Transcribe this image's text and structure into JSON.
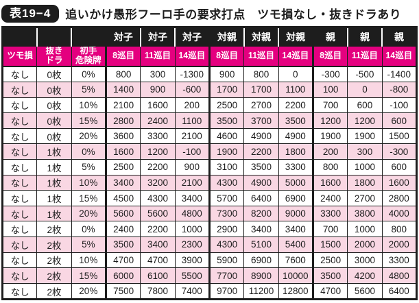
{
  "title": {
    "badge": "表19−4",
    "text": "追いかけ愚形フーロ手の要求打点　ツモ損なし・抜きドラあり"
  },
  "colors": {
    "accent_magenta": "#e4007f",
    "row_pink": "#f9d7e3",
    "header_black": "#1d1d1d"
  },
  "table": {
    "col_groups": [
      "",
      "",
      "",
      "対子",
      "対子",
      "対子",
      "対親",
      "対親",
      "対親",
      "親",
      "親",
      "親"
    ],
    "sub_headers": [
      "ツモ損",
      "抜き\nドラ",
      "初手\n危険牌",
      "8巡目",
      "11巡目",
      "14巡目",
      "8巡目",
      "11巡目",
      "14巡目",
      "8巡目",
      "11巡目",
      "14巡目"
    ],
    "rows": [
      [
        "なし",
        "0枚",
        "0%",
        "800",
        "300",
        "-1300",
        "900",
        "800",
        "0",
        "-300",
        "-500",
        "-1400"
      ],
      [
        "なし",
        "0枚",
        "5%",
        "1400",
        "900",
        "-600",
        "1700",
        "1700",
        "1100",
        "100",
        "0",
        "-800"
      ],
      [
        "なし",
        "0枚",
        "10%",
        "2100",
        "1600",
        "200",
        "2500",
        "2700",
        "2200",
        "700",
        "600",
        "-100"
      ],
      [
        "なし",
        "0枚",
        "15%",
        "2800",
        "2400",
        "1100",
        "3500",
        "3700",
        "3500",
        "1200",
        "1200",
        "600"
      ],
      [
        "なし",
        "0枚",
        "20%",
        "3600",
        "3300",
        "2100",
        "4600",
        "4900",
        "4900",
        "1900",
        "1900",
        "1500"
      ],
      [
        "なし",
        "1枚",
        "0%",
        "1600",
        "1200",
        "-100",
        "1900",
        "2200",
        "1800",
        "200",
        "300",
        "-300"
      ],
      [
        "なし",
        "1枚",
        "5%",
        "2500",
        "2200",
        "900",
        "3100",
        "3500",
        "3300",
        "800",
        "1000",
        "600"
      ],
      [
        "なし",
        "1枚",
        "10%",
        "3400",
        "3200",
        "2100",
        "4300",
        "4900",
        "5000",
        "1600",
        "1800",
        "1600"
      ],
      [
        "なし",
        "1枚",
        "15%",
        "4500",
        "4300",
        "3400",
        "5700",
        "6400",
        "6900",
        "2400",
        "2700",
        "2800"
      ],
      [
        "なし",
        "1枚",
        "20%",
        "5600",
        "5600",
        "4800",
        "7300",
        "8200",
        "9000",
        "3300",
        "3800",
        "4000"
      ],
      [
        "なし",
        "2枚",
        "0%",
        "2400",
        "2200",
        "1000",
        "2900",
        "3400",
        "3400",
        "700",
        "1000",
        "800"
      ],
      [
        "なし",
        "2枚",
        "5%",
        "3500",
        "3400",
        "2300",
        "4300",
        "5100",
        "5400",
        "1500",
        "2000",
        "2000"
      ],
      [
        "なし",
        "2枚",
        "10%",
        "4700",
        "4700",
        "3900",
        "5900",
        "6900",
        "7600",
        "2500",
        "3000",
        "3300"
      ],
      [
        "なし",
        "2枚",
        "15%",
        "6000",
        "6100",
        "5500",
        "7700",
        "8900",
        "10000",
        "3500",
        "4200",
        "4800"
      ],
      [
        "なし",
        "2枚",
        "20%",
        "7500",
        "7800",
        "7400",
        "9700",
        "11200",
        "12800",
        "4700",
        "5600",
        "6400"
      ]
    ]
  }
}
